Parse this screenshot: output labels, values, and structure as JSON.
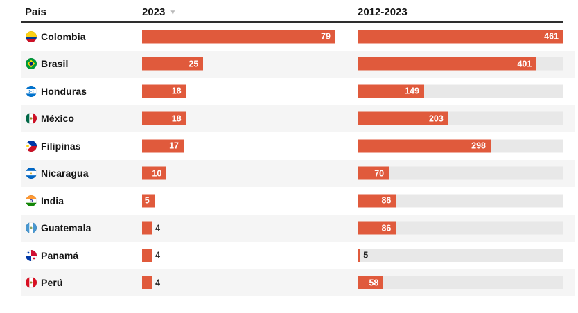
{
  "chart_data": {
    "type": "bar",
    "subtype": "table-with-bar-columns",
    "columns": {
      "country": "País",
      "col1": "2023",
      "col2": "2012-2023"
    },
    "sort": {
      "column": "2023",
      "direction": "desc",
      "icon": "▼"
    },
    "rows": [
      {
        "country": "Colombia",
        "flag": "colombia",
        "v2023": 79,
        "v2012_2023": 461
      },
      {
        "country": "Brasil",
        "flag": "brasil",
        "v2023": 25,
        "v2012_2023": 401
      },
      {
        "country": "Honduras",
        "flag": "honduras",
        "v2023": 18,
        "v2012_2023": 149
      },
      {
        "country": "México",
        "flag": "mexico",
        "v2023": 18,
        "v2012_2023": 203
      },
      {
        "country": "Filipinas",
        "flag": "filipinas",
        "v2023": 17,
        "v2012_2023": 298
      },
      {
        "country": "Nicaragua",
        "flag": "nicaragua",
        "v2023": 10,
        "v2012_2023": 70
      },
      {
        "country": "India",
        "flag": "india",
        "v2023": 5,
        "v2012_2023": 86
      },
      {
        "country": "Guatemala",
        "flag": "guatemala",
        "v2023": 4,
        "v2012_2023": 86
      },
      {
        "country": "Panamá",
        "flag": "panama",
        "v2023": 4,
        "v2012_2023": 5
      },
      {
        "country": "Perú",
        "flag": "peru",
        "v2023": 4,
        "v2012_2023": 58
      }
    ],
    "axis": {
      "col1_max": 79,
      "col2_max": 461
    },
    "layout": {
      "row_striping": true,
      "bars_in_cells": true,
      "value_labels": "inside-right, outside for tiny bars"
    },
    "colors": {
      "bar": "#e05a3c",
      "track": "#e8e8e8",
      "row_stripe": "#f5f5f5",
      "header_rule": "#2e2e2e"
    }
  }
}
